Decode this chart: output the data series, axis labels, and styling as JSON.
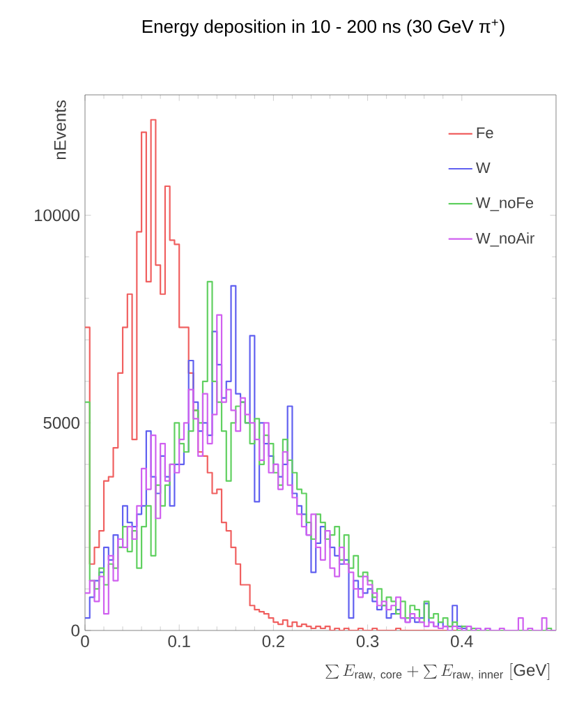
{
  "chart_data": {
    "type": "histogram",
    "title": "Energy deposition in 10 - 200 ns (30 GeV π$^{+}$)",
    "xlabel": "\\sum E_{\\mathrm{raw,\\ core}} + \\sum E_{\\mathrm{raw,\\ inner}}\\ [\\mathrm{GeV}]",
    "ylabel": "nEvents",
    "bins": [
      0,
      0.005,
      0.01,
      0.015,
      0.02,
      0.025,
      0.03,
      0.035,
      0.04,
      0.045,
      0.05,
      0.055,
      0.06,
      0.065,
      0.07,
      0.075,
      0.08,
      0.085,
      0.09,
      0.095,
      0.1,
      0.105,
      0.11,
      0.115,
      0.12,
      0.125,
      0.13,
      0.135,
      0.14,
      0.145,
      0.15,
      0.155,
      0.16,
      0.165,
      0.17,
      0.175,
      0.18,
      0.185,
      0.19,
      0.195,
      0.2,
      0.205,
      0.21,
      0.215,
      0.22,
      0.225,
      0.23,
      0.235,
      0.24,
      0.245,
      0.25,
      0.255,
      0.26,
      0.265,
      0.27,
      0.275,
      0.28,
      0.285,
      0.29,
      0.295,
      0.3,
      0.305,
      0.31,
      0.315,
      0.32,
      0.325,
      0.33,
      0.335,
      0.34,
      0.345,
      0.35,
      0.355,
      0.36,
      0.365,
      0.37,
      0.375,
      0.38,
      0.385,
      0.39,
      0.395,
      0.4,
      0.405,
      0.41,
      0.415,
      0.42,
      0.425,
      0.43,
      0.435,
      0.44,
      0.445,
      0.45,
      0.455,
      0.46,
      0.465,
      0.47,
      0.475,
      0.48,
      0.485,
      0.49,
      0.495,
      0.5
    ],
    "series": [
      {
        "name": "Fe",
        "color": "#f06060",
        "values": [
          7300,
          1600,
          2000,
          2400,
          3600,
          3700,
          4400,
          6200,
          7300,
          8100,
          4600,
          9600,
          12000,
          8400,
          12300,
          8800,
          8100,
          10700,
          9400,
          9300,
          7300,
          7300,
          6200,
          5300,
          4300,
          4200,
          3800,
          3300,
          3400,
          2600,
          2400,
          2000,
          1600,
          1100,
          1100,
          600,
          500,
          450,
          400,
          300,
          200,
          150,
          250,
          100,
          200,
          100,
          150,
          100,
          50,
          100,
          50,
          100,
          0,
          50,
          0,
          50,
          0,
          0,
          50,
          0,
          0,
          50,
          0,
          0,
          0,
          0,
          50,
          0,
          0,
          0,
          0,
          0,
          0,
          0,
          0,
          0,
          0,
          0,
          0,
          0,
          0,
          0,
          0,
          0,
          0,
          0,
          0,
          0,
          0,
          0,
          0,
          0,
          0,
          0,
          0,
          0,
          0,
          0,
          0,
          0
        ]
      },
      {
        "name": "W",
        "color": "#6060f0",
        "values": [
          300,
          800,
          1200,
          1400,
          2000,
          1700,
          2300,
          2000,
          3000,
          2600,
          2500,
          2800,
          3000,
          4800,
          3700,
          3300,
          4200,
          3700,
          3000,
          4000,
          4000,
          4300,
          6500,
          5500,
          4800,
          5000,
          4700,
          7200,
          6400,
          5600,
          6000,
          8300,
          5700,
          5500,
          5000,
          7100,
          3100,
          5000,
          4500,
          4200,
          4000,
          3700,
          4000,
          5400,
          3300,
          3000,
          2800,
          2300,
          1400,
          2100,
          2500,
          2200,
          2000,
          1800,
          1600,
          1700,
          300,
          1200,
          1000,
          900,
          1000,
          700,
          500,
          600,
          300,
          400,
          500,
          300,
          200,
          300,
          200,
          300,
          650,
          200,
          100,
          200,
          100,
          100,
          600,
          100,
          50,
          0,
          50,
          0,
          0,
          50,
          0,
          0,
          0,
          0,
          0,
          0,
          0,
          0,
          0,
          0,
          0,
          0,
          0,
          0
        ]
      },
      {
        "name": "W_noFe",
        "color": "#60d060",
        "values": [
          5500,
          1200,
          1000,
          1500,
          1100,
          1600,
          1500,
          2000,
          2500,
          1900,
          2400,
          1500,
          2500,
          3000,
          1800,
          3500,
          3000,
          3500,
          4000,
          5000,
          4500,
          4300,
          4800,
          5300,
          5000,
          6000,
          8400,
          6000,
          5500,
          4800,
          3600,
          5000,
          5400,
          5500,
          5000,
          4500,
          5100,
          4000,
          4700,
          4500,
          3800,
          3500,
          4600,
          4100,
          3800,
          3400,
          3300,
          2600,
          2200,
          2800,
          2600,
          2200,
          2300,
          2500,
          1700,
          2300,
          1500,
          1800,
          1300,
          1400,
          1200,
          800,
          1000,
          600,
          800,
          700,
          400,
          700,
          300,
          600,
          500,
          200,
          700,
          300,
          400,
          200,
          300,
          100,
          200,
          0,
          100,
          0,
          50,
          0,
          0,
          0,
          0,
          0,
          0,
          0,
          0,
          0,
          0,
          0,
          0,
          0,
          0,
          0,
          50,
          0
        ]
      },
      {
        "name": "W_noAir",
        "color": "#d060f0",
        "values": [
          900,
          1200,
          700,
          1300,
          400,
          1800,
          1200,
          2200,
          2000,
          2500,
          2200,
          3000,
          3900,
          3400,
          4700,
          2700,
          4500,
          3600,
          4000,
          3800,
          4600,
          5000,
          5800,
          5100,
          4200,
          5700,
          4500,
          5200,
          7600,
          5500,
          5800,
          5300,
          4800,
          5600,
          5200,
          5000,
          4600,
          4100,
          5000,
          3800,
          4000,
          3400,
          4300,
          3500,
          3200,
          2800,
          2500,
          2300,
          2800,
          2000,
          1700,
          2400,
          1500,
          1300,
          2000,
          1600,
          1400,
          1000,
          800,
          1300,
          1100,
          900,
          600,
          700,
          500,
          600,
          800,
          300,
          200,
          400,
          300,
          200,
          100,
          200,
          100,
          50,
          100,
          0,
          100,
          50,
          0,
          100,
          0,
          50,
          0,
          50,
          0,
          0,
          50,
          0,
          0,
          0,
          300,
          0,
          50,
          0,
          0,
          300,
          0,
          0
        ]
      }
    ],
    "xlim": [
      0,
      0.5
    ],
    "ylim": [
      0,
      12900
    ],
    "xticks": [
      0,
      0.1,
      0.2,
      0.3,
      0.4
    ],
    "yticks": [
      0,
      5000,
      10000
    ],
    "legend": "top right",
    "grid": false,
    "line_style": "solid"
  }
}
